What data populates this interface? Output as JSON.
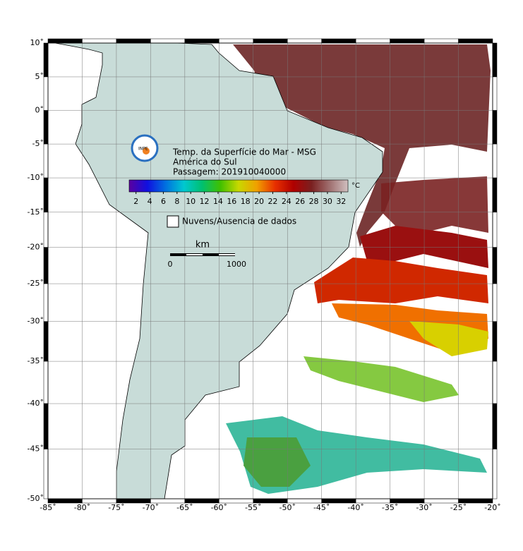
{
  "map": {
    "xlim": [
      -85,
      -20
    ],
    "ylim": [
      -50,
      10
    ],
    "projection": "mercator",
    "grid": true,
    "xticks": [
      {
        "value": -85,
        "label": "-85˚"
      },
      {
        "value": -80,
        "label": "-80˚"
      },
      {
        "value": -75,
        "label": "-75˚"
      },
      {
        "value": -70,
        "label": "-70˚"
      },
      {
        "value": -65,
        "label": "-65˚"
      },
      {
        "value": -60,
        "label": "-60˚"
      },
      {
        "value": -55,
        "label": "-55˚"
      },
      {
        "value": -50,
        "label": "-50˚"
      },
      {
        "value": -45,
        "label": "-45˚"
      },
      {
        "value": -40,
        "label": "-40˚"
      },
      {
        "value": -35,
        "label": "-35˚"
      },
      {
        "value": -30,
        "label": "-30˚"
      },
      {
        "value": -25,
        "label": "-25˚"
      },
      {
        "value": -20,
        "label": "-20˚"
      }
    ],
    "yticks": [
      {
        "value": 10,
        "label": "10˚"
      },
      {
        "value": 5,
        "label": "5˚"
      },
      {
        "value": 0,
        "label": "0˚"
      },
      {
        "value": -5,
        "label": "-5˚"
      },
      {
        "value": -10,
        "label": "-10˚"
      },
      {
        "value": -15,
        "label": "-15˚"
      },
      {
        "value": -20,
        "label": "-20˚"
      },
      {
        "value": -25,
        "label": "-25˚"
      },
      {
        "value": -30,
        "label": "-30˚"
      },
      {
        "value": -35,
        "label": "-35˚"
      },
      {
        "value": -40,
        "label": "-40˚"
      },
      {
        "value": -45,
        "label": "-45˚"
      },
      {
        "value": -50,
        "label": "-50˚"
      }
    ]
  },
  "header": {
    "logo": "INPE",
    "title": "Temp. da Superfície do Mar - MSG",
    "region": "América do Sul",
    "pass": "Passagem: 201910040000"
  },
  "colorbar": {
    "unit": "°C",
    "lim": [
      1,
      33
    ],
    "ticks": [
      2,
      4,
      6,
      8,
      10,
      12,
      14,
      16,
      18,
      20,
      22,
      24,
      26,
      28,
      30,
      32
    ],
    "colors": [
      "#5a00a0",
      "#1010e0",
      "#0070e0",
      "#00c8d0",
      "#00c070",
      "#40c000",
      "#c8d800",
      "#f0a000",
      "#e83000",
      "#b00000",
      "#7a2020",
      "#a07070",
      "#d0c0c0"
    ]
  },
  "legend": {
    "label": "Nuvens/Ausencia de dados"
  },
  "scalebar": {
    "unit": "km",
    "start": "0",
    "end": "1000"
  }
}
